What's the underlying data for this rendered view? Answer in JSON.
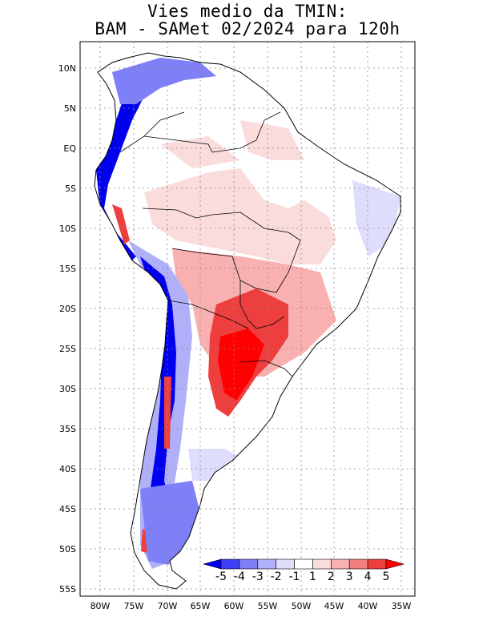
{
  "title": {
    "line1": "Vies medio da TMIN:",
    "line2": "BAM - SAMet 02/2024  para 120h"
  },
  "map": {
    "region": "South America",
    "lat_range": [
      -56,
      13
    ],
    "lon_range": [
      -83,
      -34
    ],
    "lat_ticks": [
      "10N",
      "5N",
      "EQ",
      "5S",
      "10S",
      "15S",
      "20S",
      "25S",
      "30S",
      "35S",
      "40S",
      "45S",
      "50S",
      "55S"
    ],
    "lon_ticks": [
      "80W",
      "75W",
      "70W",
      "65W",
      "60W",
      "55W",
      "50W",
      "45W",
      "40W",
      "35W"
    ],
    "grid": "dotted"
  },
  "colorbar": {
    "labels": [
      "-5",
      "-4",
      "-3",
      "-2",
      "-1",
      "1",
      "2",
      "3",
      "4",
      "5"
    ],
    "colors": [
      "#0000ee",
      "#3f3ff5",
      "#7f7ff7",
      "#b0b0fa",
      "#dedefc",
      "#ffffff",
      "#fbdcdc",
      "#f8b0b0",
      "#f47f7f",
      "#ee3f3f",
      "#ff0000"
    ]
  }
}
